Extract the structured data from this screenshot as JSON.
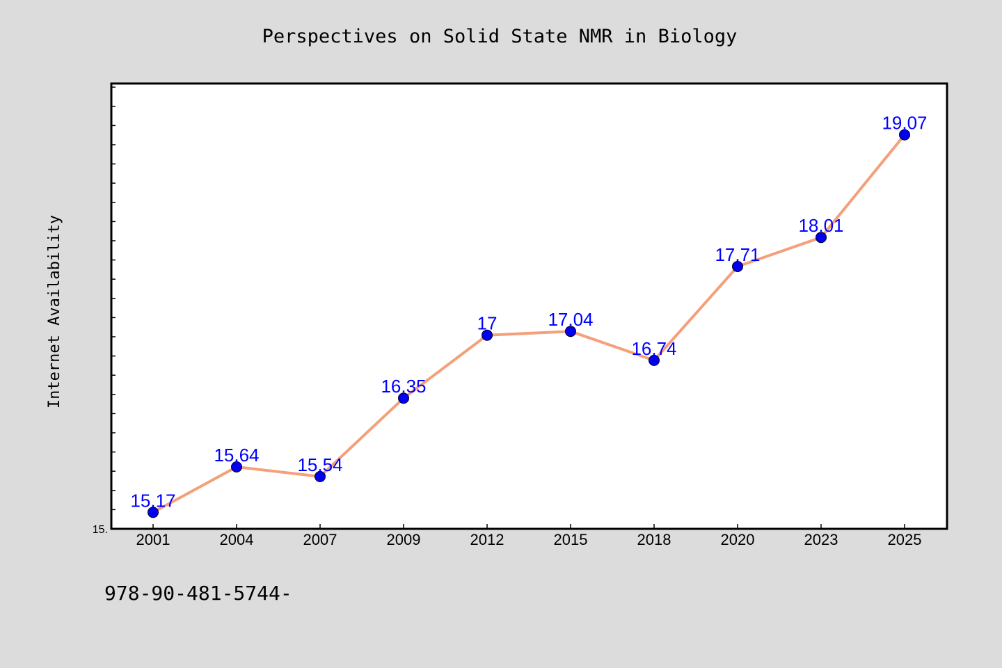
{
  "chart_data": {
    "type": "line",
    "title": "Perspectives on Solid State NMR in Biology",
    "ylabel": "Internet Availability",
    "xlabel": "",
    "categories": [
      "2001",
      "2004",
      "2007",
      "2009",
      "2012",
      "2015",
      "2018",
      "2020",
      "2023",
      "2025"
    ],
    "series": [
      {
        "values": [
          15.17,
          15.64,
          15.54,
          16.35,
          17,
          17.04,
          16.74,
          17.71,
          18.01,
          19.07
        ],
        "data_labels": [
          "15.17",
          "15.64",
          "15.54",
          "16.35",
          "17",
          "17.04",
          "16.74",
          "17.71",
          "18.01",
          "19.07"
        ]
      }
    ],
    "ylim": [
      15.0,
      19.6
    ],
    "y_tick_label": "15.",
    "grid": false,
    "legend": "none",
    "footer_text": "978-90-481-5744-",
    "colors": {
      "background": "#dcdcdc",
      "plot_background": "#ffffff",
      "line": "#f4a07a",
      "marker": "#0000ee",
      "data_label": "#0000ff",
      "text": "#000000"
    }
  }
}
